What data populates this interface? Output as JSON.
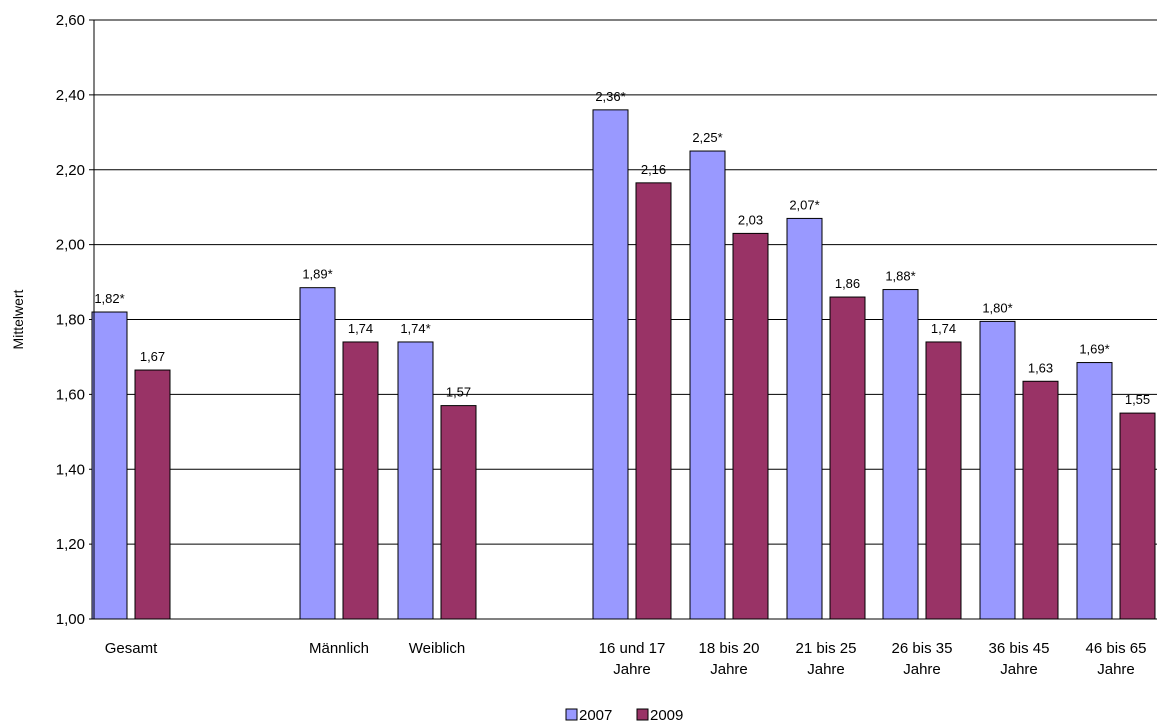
{
  "chart_data": {
    "type": "bar",
    "ylabel": "Mittelwert",
    "ylim": [
      1.0,
      2.6
    ],
    "yticks": [
      "1,00",
      "1,20",
      "1,40",
      "1,60",
      "1,80",
      "2,00",
      "2,20",
      "2,40",
      "2,60"
    ],
    "grid": true,
    "legend_position": "bottom",
    "categories": [
      [
        "Gesamt"
      ],
      [
        "Männlich"
      ],
      [
        "Weiblich"
      ],
      [
        "16 und 17",
        "Jahre"
      ],
      [
        "18 bis 20",
        "Jahre"
      ],
      [
        "21 bis 25",
        "Jahre"
      ],
      [
        "26 bis 35",
        "Jahre"
      ],
      [
        "36 bis 45",
        "Jahre"
      ],
      [
        "46 bis 65",
        "Jahre"
      ]
    ],
    "series": [
      {
        "name": "2007",
        "color": "#9999FF",
        "values": [
          1.82,
          1.885,
          1.74,
          2.36,
          2.25,
          2.07,
          1.88,
          1.795,
          1.685
        ],
        "labels": [
          "1,82*",
          "1,89*",
          "1,74*",
          "2,36*",
          "2,25*",
          "2,07*",
          "1,88*",
          "1,80*",
          "1,69*"
        ]
      },
      {
        "name": "2009",
        "color": "#993366",
        "values": [
          1.665,
          1.74,
          1.57,
          2.165,
          2.03,
          1.86,
          1.74,
          1.635,
          1.55
        ],
        "labels": [
          "1,67",
          "1,74",
          "1,57",
          "2,16",
          "2,03",
          "1,86",
          "1,74",
          "1,63",
          "1,55"
        ]
      }
    ]
  }
}
